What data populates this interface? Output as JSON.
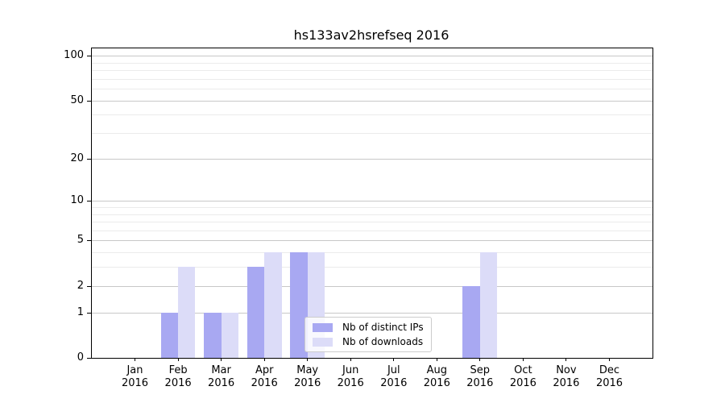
{
  "title": "hs133av2hsrefseq 2016",
  "chart_data": {
    "type": "bar",
    "title": "hs133av2hsrefseq 2016",
    "x_categories": [
      "Jan",
      "Feb",
      "Mar",
      "Apr",
      "May",
      "Jun",
      "Jul",
      "Aug",
      "Sep",
      "Oct",
      "Nov",
      "Dec"
    ],
    "x_year": "2016",
    "series": [
      {
        "name": "Nb of distinct IPs",
        "color": "#a8a8f2",
        "values": [
          0,
          1,
          1,
          3,
          4,
          0,
          0,
          0,
          2,
          0,
          0,
          0
        ]
      },
      {
        "name": "Nb of downloads",
        "color": "#dcdcf8",
        "values": [
          0,
          3,
          1,
          4,
          4,
          0,
          0,
          0,
          4,
          0,
          0,
          0
        ]
      }
    ],
    "y_ticks": [
      0,
      1,
      2,
      5,
      10,
      20,
      50,
      100
    ],
    "y_minor_gridlines": [
      3,
      4,
      6,
      7,
      8,
      9,
      30,
      40,
      60,
      70,
      80,
      90
    ],
    "y_scale": "log1p",
    "ylim": [
      0,
      112
    ],
    "xlabel": "",
    "ylabel": "",
    "grid": "horizontal",
    "legend_position": "lower-center"
  },
  "colors": {
    "background": "#ffffff",
    "axis": "#000000",
    "grid_major": "#c8c8c8",
    "grid_minor": "#ebebeb",
    "bar_distinct_ips": "#a8a8f2",
    "bar_downloads": "#dcdcf8"
  }
}
